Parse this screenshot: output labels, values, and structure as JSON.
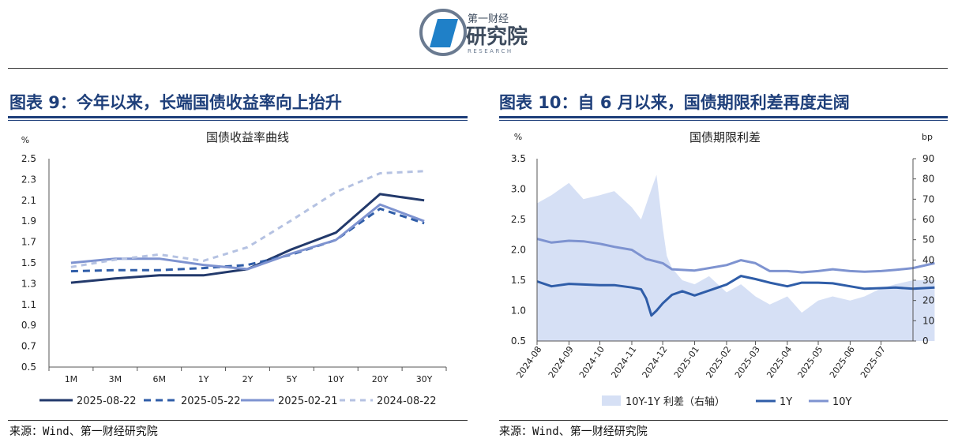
{
  "header": {
    "logo_top": "第一财经",
    "logo_main": "研究院",
    "logo_sub": "RESEARCH"
  },
  "panel_left": {
    "fig_title": "图表 9：今年以来，长端国债收益率向上抬升",
    "source": "来源：Wind、第一财经研究院"
  },
  "panel_right": {
    "fig_title": "图表 10：自 6 月以来，国债期限利差再度走阔",
    "source": "来源：Wind、第一财经研究院"
  },
  "colors": {
    "title_blue": "#1e3f7a",
    "navy": "#22396b",
    "mid_blue": "#2f5da8",
    "periwinkle": "#7e93d0",
    "light_blue": "#b5c2e2",
    "area_fill": "#d6e0f5"
  },
  "chart_data": [
    {
      "type": "line",
      "title": "国债收益率曲线",
      "ylabel": "%",
      "xlabel": "",
      "categories": [
        "1M",
        "3M",
        "6M",
        "1Y",
        "2Y",
        "5Y",
        "10Y",
        "20Y",
        "30Y"
      ],
      "ylim": [
        0.5,
        2.5
      ],
      "yticks": [
        "0.5",
        "0.7",
        "0.9",
        "1.1",
        "1.3",
        "1.5",
        "1.7",
        "1.9",
        "2.1",
        "2.3",
        "2.5"
      ],
      "legend_position": "bottom",
      "grid": false,
      "series": [
        {
          "name": "2025-08-22",
          "style": "solid",
          "values": [
            1.31,
            1.35,
            1.38,
            1.38,
            1.44,
            1.63,
            1.79,
            2.16,
            2.1
          ]
        },
        {
          "name": "2025-05-22",
          "style": "dashed",
          "values": [
            1.42,
            1.43,
            1.43,
            1.45,
            1.48,
            1.58,
            1.72,
            2.02,
            1.88
          ]
        },
        {
          "name": "2025-02-21",
          "style": "solid",
          "values": [
            1.5,
            1.54,
            1.54,
            1.48,
            1.44,
            1.59,
            1.72,
            2.06,
            1.9
          ]
        },
        {
          "name": "2024-08-22",
          "style": "dashed",
          "values": [
            1.46,
            1.53,
            1.58,
            1.52,
            1.65,
            1.91,
            2.18,
            2.36,
            2.38
          ]
        }
      ]
    },
    {
      "type": "line",
      "title": "国债期限利差",
      "ylabel": "%",
      "ylabel_right": "bp",
      "xlabel": "",
      "x_range": [
        "2024-08",
        "2025-08"
      ],
      "xticks": [
        "2024-08",
        "2024-09",
        "2024-10",
        "2024-11",
        "2024-12",
        "2025-01",
        "2025-02",
        "2025-03",
        "2025-04",
        "2025-05",
        "2025-06",
        "2025-07"
      ],
      "ylim": [
        0.5,
        3.5
      ],
      "yticks": [
        "0.5",
        "1.0",
        "1.5",
        "2.0",
        "2.5",
        "3.0",
        "3.5"
      ],
      "ylim_right": [
        0,
        90
      ],
      "yticks_right": [
        "0",
        "10",
        "20",
        "30",
        "40",
        "50",
        "60",
        "70",
        "80",
        "90"
      ],
      "legend_position": "bottom",
      "grid": false,
      "series": [
        {
          "name": "10Y-1Y 利差（右轴）",
          "type": "area",
          "axis": "right",
          "x": [
            "2024-08-01",
            "2024-08-15",
            "2024-09-01",
            "2024-09-15",
            "2024-10-01",
            "2024-10-15",
            "2024-11-01",
            "2024-11-10",
            "2024-11-20",
            "2024-11-25",
            "2024-12-01",
            "2024-12-05",
            "2024-12-10",
            "2024-12-20",
            "2025-01-01",
            "2025-01-15",
            "2025-02-01",
            "2025-02-15",
            "2025-03-01",
            "2025-03-15",
            "2025-04-01",
            "2025-04-15",
            "2025-05-01",
            "2025-05-15",
            "2025-06-01",
            "2025-06-15",
            "2025-07-01",
            "2025-07-15",
            "2025-08-01",
            "2025-08-22"
          ],
          "values": [
            68,
            72,
            78,
            70,
            72,
            74,
            66,
            60,
            75,
            82,
            56,
            42,
            36,
            30,
            28,
            32,
            24,
            28,
            22,
            18,
            22,
            14,
            20,
            22,
            20,
            22,
            26,
            28,
            30,
            30
          ]
        },
        {
          "name": "1Y",
          "type": "line",
          "axis": "left",
          "x": [
            "2024-08-01",
            "2024-08-15",
            "2024-09-01",
            "2024-09-15",
            "2024-10-01",
            "2024-10-15",
            "2024-11-01",
            "2024-11-10",
            "2024-11-15",
            "2024-11-20",
            "2024-11-25",
            "2024-12-01",
            "2024-12-10",
            "2024-12-20",
            "2025-01-01",
            "2025-01-15",
            "2025-02-01",
            "2025-02-15",
            "2025-03-01",
            "2025-03-15",
            "2025-04-01",
            "2025-04-15",
            "2025-05-01",
            "2025-05-15",
            "2025-06-01",
            "2025-06-15",
            "2025-07-01",
            "2025-07-15",
            "2025-08-01",
            "2025-08-22"
          ],
          "values": [
            1.48,
            1.4,
            1.44,
            1.43,
            1.42,
            1.42,
            1.38,
            1.35,
            1.2,
            0.92,
            1.0,
            1.12,
            1.26,
            1.32,
            1.25,
            1.33,
            1.43,
            1.57,
            1.52,
            1.46,
            1.4,
            1.46,
            1.46,
            1.45,
            1.4,
            1.36,
            1.37,
            1.38,
            1.36,
            1.38
          ]
        },
        {
          "name": "10Y",
          "type": "line",
          "axis": "left",
          "x": [
            "2024-08-01",
            "2024-08-15",
            "2024-09-01",
            "2024-09-15",
            "2024-10-01",
            "2024-10-15",
            "2024-11-01",
            "2024-11-15",
            "2024-12-01",
            "2024-12-10",
            "2024-12-20",
            "2025-01-01",
            "2025-01-15",
            "2025-02-01",
            "2025-02-15",
            "2025-03-01",
            "2025-03-15",
            "2025-04-01",
            "2025-04-15",
            "2025-05-01",
            "2025-05-15",
            "2025-06-01",
            "2025-06-15",
            "2025-07-01",
            "2025-07-15",
            "2025-08-01",
            "2025-08-22"
          ],
          "values": [
            2.18,
            2.12,
            2.15,
            2.14,
            2.1,
            2.05,
            2.0,
            1.85,
            1.78,
            1.68,
            1.67,
            1.66,
            1.7,
            1.75,
            1.83,
            1.78,
            1.65,
            1.65,
            1.63,
            1.65,
            1.68,
            1.65,
            1.64,
            1.65,
            1.67,
            1.7,
            1.78
          ]
        }
      ]
    }
  ]
}
